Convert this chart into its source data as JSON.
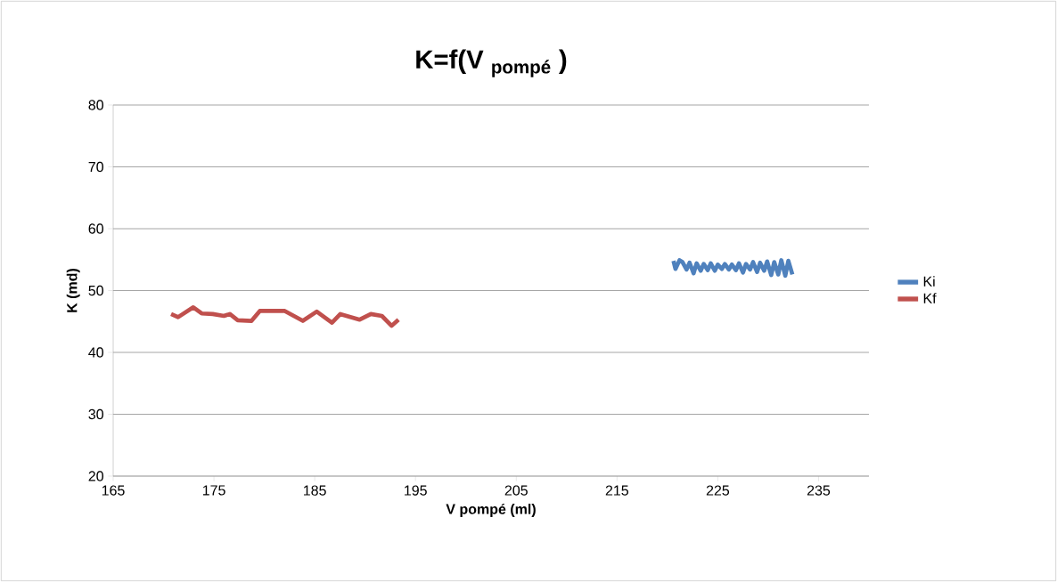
{
  "chart_data": {
    "type": "line",
    "title": "K=f(V $_{pompé}$ )",
    "xlabel": "V pompé (ml)",
    "ylabel": "K (md)",
    "xlim": [
      165,
      240
    ],
    "xticks": [
      165,
      175,
      185,
      195,
      205,
      215,
      225,
      235
    ],
    "ylim": [
      20,
      80
    ],
    "yticks": [
      20,
      30,
      40,
      50,
      60,
      70,
      80
    ],
    "grid": "y",
    "legend": "right",
    "marker": "none",
    "line_style": "solid",
    "series": [
      {
        "name": "Ki",
        "color": "#4f81bd",
        "x": [
          220.6,
          220.8,
          221.2,
          221.5,
          221.9,
          222.2,
          222.6,
          222.9,
          223.3,
          223.6,
          224.0,
          224.3,
          224.7,
          225.0,
          225.4,
          225.7,
          226.1,
          226.4,
          226.8,
          227.1,
          227.5,
          227.8,
          228.2,
          228.5,
          228.9,
          229.2,
          229.6,
          229.9,
          230.3,
          230.6,
          231.0,
          231.3,
          231.7,
          232.0,
          232.4
        ],
        "values": [
          54.8,
          53.5,
          54.9,
          54.6,
          53.4,
          54.5,
          52.8,
          54.4,
          53.2,
          54.3,
          53.3,
          54.4,
          53.2,
          54.2,
          53.5,
          54.3,
          53.4,
          54.2,
          53.3,
          54.4,
          52.9,
          54.3,
          53.4,
          54.6,
          53.0,
          54.5,
          53.2,
          54.7,
          52.5,
          54.6,
          52.6,
          54.9,
          52.4,
          54.8,
          52.6
        ]
      },
      {
        "name": "Kf",
        "color": "#c0504d",
        "x": [
          170.75,
          171.44,
          172.95,
          173.78,
          174.88,
          175.98,
          176.58,
          177.36,
          178.73,
          179.55,
          182.03,
          183.82,
          185.2,
          186.71,
          187.54,
          189.46,
          190.57,
          191.66,
          192.63,
          193.31
        ],
        "values": [
          46.2,
          45.7,
          47.3,
          46.3,
          46.2,
          45.9,
          46.2,
          45.2,
          45.1,
          46.7,
          46.7,
          45.1,
          46.6,
          44.8,
          46.2,
          45.3,
          46.2,
          45.9,
          44.3,
          45.3
        ]
      }
    ]
  }
}
